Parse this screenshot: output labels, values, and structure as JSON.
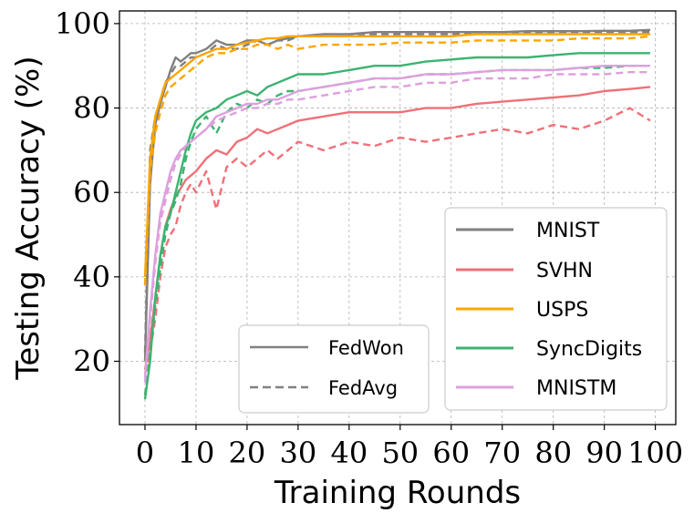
{
  "chart_data": {
    "type": "line",
    "title": "",
    "xlabel": "Training Rounds",
    "ylabel": "Testing Accuracy (%)",
    "xlim": [
      -5,
      104
    ],
    "ylim": [
      5,
      103
    ],
    "xticks": [
      "0",
      "10",
      "20",
      "30",
      "40",
      "50",
      "60",
      "70",
      "80",
      "90",
      "100"
    ],
    "yticks": [
      "20",
      "40",
      "60",
      "80",
      "100"
    ],
    "grid": true,
    "x": [
      0,
      1,
      2,
      3,
      4,
      5,
      6,
      7,
      8,
      9,
      10,
      12,
      14,
      16,
      18,
      20,
      22,
      24,
      26,
      28,
      30,
      35,
      40,
      45,
      50,
      55,
      60,
      65,
      70,
      75,
      80,
      85,
      90,
      95,
      99
    ],
    "methods": [
      {
        "name": "FedWon",
        "style": "solid"
      },
      {
        "name": "FedAvg",
        "style": "dashed"
      }
    ],
    "datasets": [
      {
        "name": "MNIST",
        "color": "#808080"
      },
      {
        "name": "SVHN",
        "color": "#f07078"
      },
      {
        "name": "USPS",
        "color": "#ffa500"
      },
      {
        "name": "SyncDigits",
        "color": "#3cb371"
      },
      {
        "name": "MNISTM",
        "color": "#dda0dd"
      }
    ],
    "series": [
      {
        "name": "MNIST FedWon",
        "dataset": "MNIST",
        "method": "FedWon",
        "values": [
          20,
          62,
          76,
          81,
          85,
          89,
          92,
          91,
          92,
          93,
          93,
          94,
          96,
          95,
          95,
          96,
          96,
          95,
          96,
          96.5,
          97,
          97.5,
          97.5,
          98,
          98,
          98,
          98,
          98,
          98,
          98.2,
          98.2,
          98.2,
          98.3,
          98.3,
          98.5
        ]
      },
      {
        "name": "MNIST FedAvg",
        "dataset": "MNIST",
        "method": "FedAvg",
        "values": [
          22,
          70,
          78,
          82,
          86,
          88,
          90,
          90,
          91,
          92,
          92,
          93,
          95,
          94,
          94,
          95,
          96,
          95,
          96,
          96,
          97,
          97,
          97,
          97.5,
          97.5,
          97.5,
          97.5,
          97.8,
          97.8,
          97.8,
          98,
          98,
          98,
          98,
          98
        ]
      },
      {
        "name": "SVHN FedWon",
        "dataset": "SVHN",
        "method": "FedWon",
        "values": [
          18,
          25,
          35,
          45,
          52,
          56,
          59,
          61,
          63,
          64,
          65,
          68,
          70,
          69,
          72,
          73,
          75,
          74,
          75,
          76,
          77,
          78,
          79,
          79,
          79,
          80,
          80,
          81,
          81.5,
          82,
          82.5,
          83,
          84,
          84.5,
          85
        ]
      },
      {
        "name": "SVHN FedAvg",
        "dataset": "SVHN",
        "method": "FedAvg",
        "values": [
          17,
          22,
          30,
          40,
          47,
          50,
          52,
          57,
          60,
          62,
          60,
          65,
          56,
          66,
          68,
          66,
          68,
          70,
          68,
          70,
          72,
          70,
          72,
          71,
          73,
          72,
          73,
          74,
          75,
          74,
          76,
          75,
          77,
          80,
          77
        ]
      },
      {
        "name": "USPS FedWon",
        "dataset": "USPS",
        "method": "FedWon",
        "values": [
          40,
          68,
          78,
          82,
          86,
          87,
          88,
          89,
          90,
          91,
          92,
          93,
          94,
          94,
          95,
          95.5,
          96,
          96.5,
          96.5,
          97,
          97,
          97,
          97,
          97,
          97,
          97,
          97,
          97.5,
          97.5,
          97.5,
          97.5,
          97.5,
          97.5,
          97.5,
          97.5
        ]
      },
      {
        "name": "USPS FedAvg",
        "dataset": "USPS",
        "method": "FedAvg",
        "values": [
          38,
          65,
          74,
          79,
          83,
          85,
          86,
          87,
          88,
          89,
          90,
          92,
          93,
          93,
          94,
          94,
          95,
          95,
          94,
          95,
          94,
          95,
          95,
          95,
          95.5,
          95.5,
          95.5,
          96,
          96,
          96,
          96,
          96.5,
          96.5,
          96.5,
          97
        ]
      },
      {
        "name": "SyncDigits FedWon",
        "dataset": "SyncDigits",
        "method": "FedWon",
        "values": [
          11,
          20,
          35,
          45,
          52,
          55,
          60,
          65,
          70,
          74,
          77,
          79,
          80,
          82,
          83,
          84,
          83,
          85,
          86,
          87,
          88,
          88,
          89,
          90,
          90,
          91,
          91.5,
          92,
          92,
          92,
          92.5,
          93,
          93,
          93,
          93
        ]
      },
      {
        "name": "SyncDigits FedAvg",
        "dataset": "SyncDigits",
        "method": "FedAvg",
        "values": [
          12,
          22,
          33,
          42,
          50,
          55,
          58,
          62,
          68,
          72,
          75,
          78,
          74,
          79,
          81,
          80,
          82,
          81,
          83,
          84,
          84,
          85,
          86,
          87,
          87,
          88,
          88,
          88.5,
          89,
          89,
          89,
          89.5,
          89.5,
          90,
          90
        ]
      },
      {
        "name": "MNISTM FedWon",
        "dataset": "MNISTM",
        "method": "FedWon",
        "values": [
          16,
          32,
          45,
          55,
          60,
          65,
          68,
          70,
          71,
          72,
          73,
          75,
          78,
          79,
          80,
          81,
          81,
          82,
          82,
          83,
          84,
          85,
          86,
          87,
          87,
          88,
          88,
          88.5,
          89,
          89,
          89,
          89.5,
          90,
          90,
          90
        ]
      },
      {
        "name": "MNISTM FedAvg",
        "dataset": "MNISTM",
        "method": "FedAvg",
        "values": [
          15,
          30,
          43,
          53,
          58,
          63,
          67,
          69,
          71,
          72,
          73,
          75,
          77,
          78,
          79,
          80,
          80,
          81,
          81,
          82,
          82,
          83,
          84,
          85,
          85,
          86,
          86,
          87,
          87,
          87,
          88,
          88,
          88,
          88.5,
          88.5
        ]
      }
    ]
  }
}
